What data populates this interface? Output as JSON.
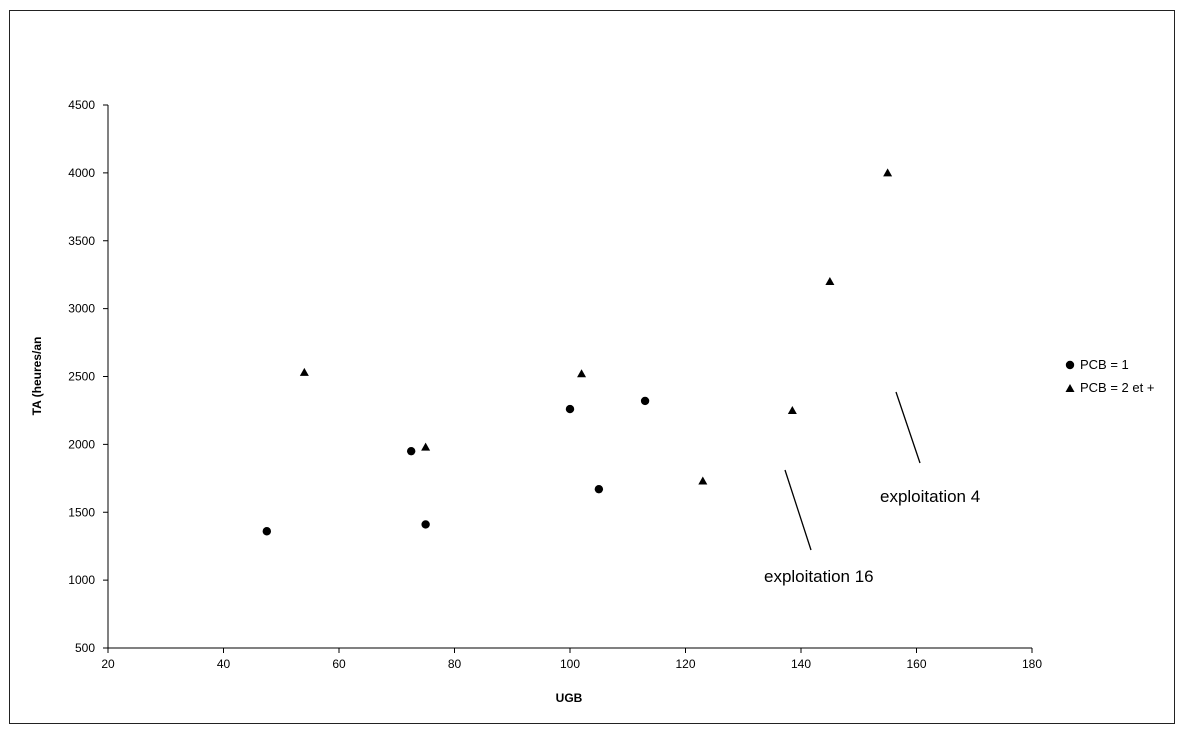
{
  "chart_data": {
    "type": "scatter",
    "title": "",
    "xlabel": "UGB",
    "ylabel": "TA (heures/an",
    "xlim": [
      20,
      180
    ],
    "ylim": [
      500,
      4500
    ],
    "xticks": [
      "20",
      "40",
      "60",
      "80",
      "100",
      "120",
      "140",
      "160",
      "180"
    ],
    "yticks": [
      "500",
      "1000",
      "1500",
      "2000",
      "2500",
      "3000",
      "3500",
      "4000",
      "4500"
    ],
    "grid": false,
    "legend_position": "right",
    "series": [
      {
        "name": "PCB = 1",
        "marker": "circle",
        "color": "#000000",
        "points": [
          {
            "x": 47.5,
            "y": 1360
          },
          {
            "x": 72.5,
            "y": 1950
          },
          {
            "x": 75,
            "y": 1410
          },
          {
            "x": 100,
            "y": 2260
          },
          {
            "x": 105,
            "y": 1670
          },
          {
            "x": 113,
            "y": 2320
          }
        ]
      },
      {
        "name": "PCB = 2 et +",
        "marker": "triangle",
        "color": "#000000",
        "points": [
          {
            "x": 54,
            "y": 2530
          },
          {
            "x": 75,
            "y": 1980
          },
          {
            "x": 102,
            "y": 2520
          },
          {
            "x": 123,
            "y": 1730
          },
          {
            "x": 138.5,
            "y": 2250
          },
          {
            "x": 145,
            "y": 3200
          },
          {
            "x": 155,
            "y": 4000
          }
        ]
      }
    ],
    "annotations": [
      {
        "text": "exploitation 16"
      },
      {
        "text": "exploitation 4"
      }
    ]
  }
}
